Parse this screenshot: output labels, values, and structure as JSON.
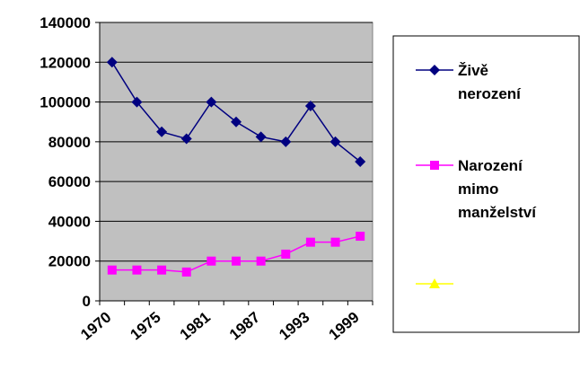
{
  "chart_data": {
    "type": "line",
    "categories": [
      "1970",
      null,
      "1975",
      null,
      "1981",
      null,
      "1987",
      null,
      "1993",
      null,
      "1999"
    ],
    "series": [
      {
        "name": "Živě nerození",
        "color": "#000080",
        "marker": "diamond",
        "values": [
          120000,
          100000,
          85000,
          81500,
          100000,
          90000,
          82500,
          80000,
          98000,
          80000,
          70000
        ]
      },
      {
        "name": "Narození mimo manželství",
        "color": "#ff00ff",
        "marker": "square",
        "values": [
          15500,
          15500,
          15500,
          14500,
          20000,
          20000,
          20000,
          23500,
          29500,
          29500,
          32500
        ]
      },
      {
        "color": "#ffff00",
        "marker": "triangle",
        "values": [
          null,
          null,
          null,
          null,
          null,
          null,
          null,
          null,
          null,
          null,
          null
        ]
      }
    ],
    "ylim": [
      0,
      140000
    ],
    "yticks": [
      0,
      20000,
      40000,
      60000,
      80000,
      100000,
      120000,
      140000
    ],
    "grid": true,
    "legend": "right"
  }
}
